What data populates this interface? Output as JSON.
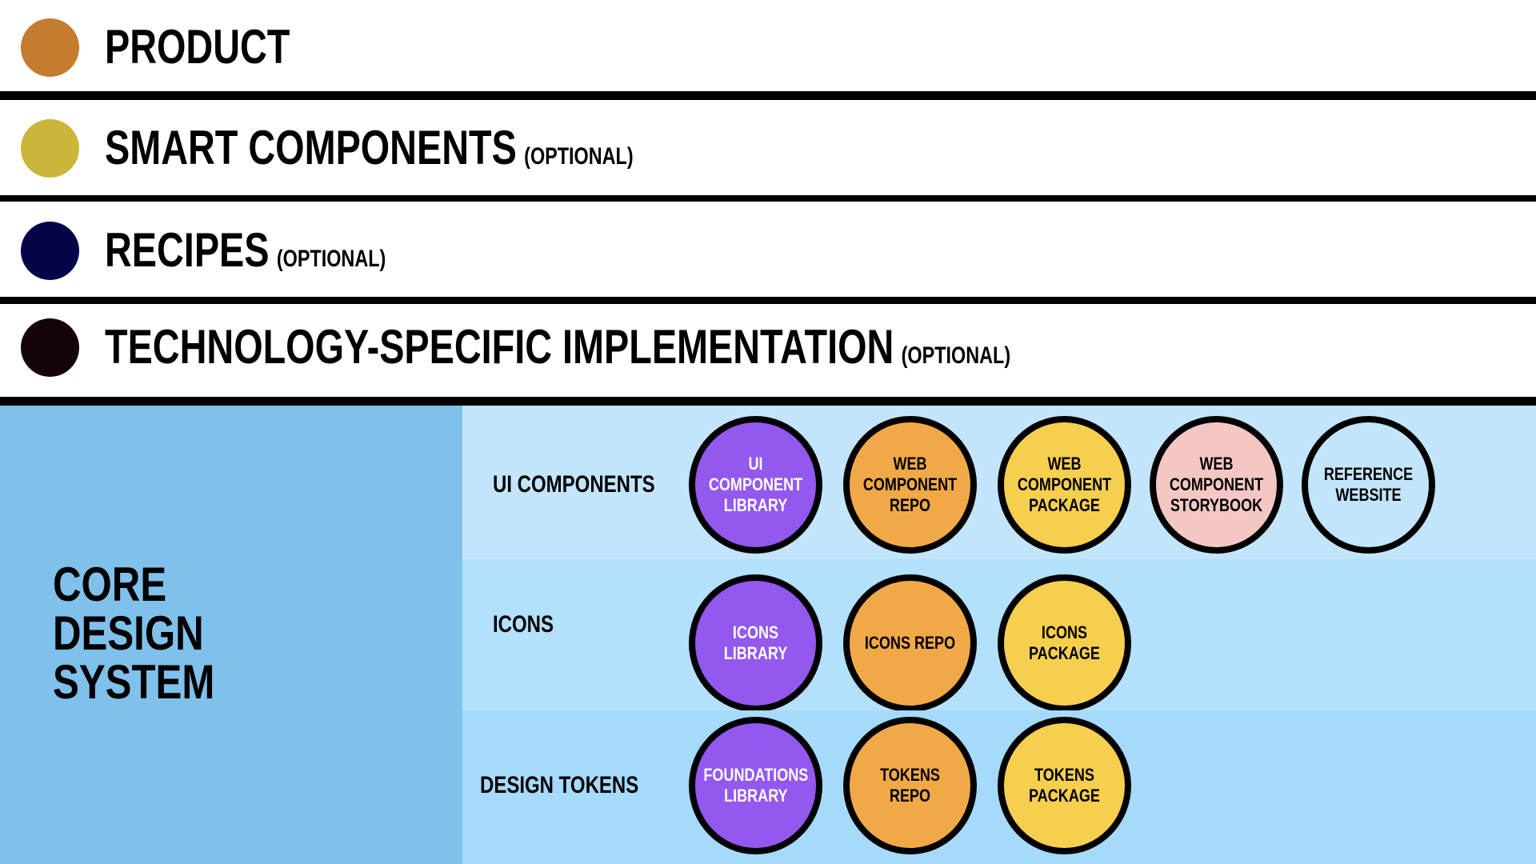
{
  "layers": [
    {
      "title": "PRODUCT",
      "optional": "",
      "color": "#c47c2e"
    },
    {
      "title": "SMART COMPONENTS",
      "optional": "(OPTIONAL)",
      "color": "#cbb53a"
    },
    {
      "title": "RECIPES",
      "optional": "(OPTIONAL)",
      "color": "#05044a"
    },
    {
      "title": "TECHNOLOGY-SPECIFIC IMPLEMENTATION",
      "optional": "(OPTIONAL)",
      "color": "#150405"
    }
  ],
  "core": {
    "title": "CORE\nDESIGN\nSYSTEM",
    "color": "#7fc1eb"
  },
  "rows": [
    {
      "label": "UI COMPONENTS",
      "bg": "#c2e5fb",
      "items": [
        {
          "label": "UI\nCOMPONENT\nLIBRARY",
          "color": "#9358ee",
          "text": "#ffffff"
        },
        {
          "label": "WEB\nCOMPONENT\nREPO",
          "color": "#f1a947",
          "text": "#000000"
        },
        {
          "label": "WEB\nCOMPONENT\nPACKAGE",
          "color": "#f6cf4e",
          "text": "#000000"
        },
        {
          "label": "WEB\nCOMPONENT\nSTORYBOOK",
          "color": "#f5c7c4",
          "text": "#000000"
        },
        {
          "label": "REFERENCE\nWEBSITE",
          "color": "#c2e5fb",
          "text": "#000000"
        }
      ]
    },
    {
      "label": "ICONS",
      "bg": "#b3e0fb",
      "items": [
        {
          "label": "ICONS LIBRARY",
          "color": "#9358ee",
          "text": "#ffffff"
        },
        {
          "label": "ICONS REPO",
          "color": "#f1a947",
          "text": "#000000"
        },
        {
          "label": "ICONS\nPACKAGE",
          "color": "#f6cf4e",
          "text": "#000000"
        }
      ]
    },
    {
      "label": "DESIGN TOKENS",
      "bg": "#a6dafa",
      "items": [
        {
          "label": "FOUNDATIONS\nLIBRARY",
          "color": "#9358ee",
          "text": "#ffffff"
        },
        {
          "label": "TOKENS REPO",
          "color": "#f1a947",
          "text": "#000000"
        },
        {
          "label": "TOKENS\nPACKAGE",
          "color": "#f6cf4e",
          "text": "#000000"
        }
      ]
    }
  ]
}
